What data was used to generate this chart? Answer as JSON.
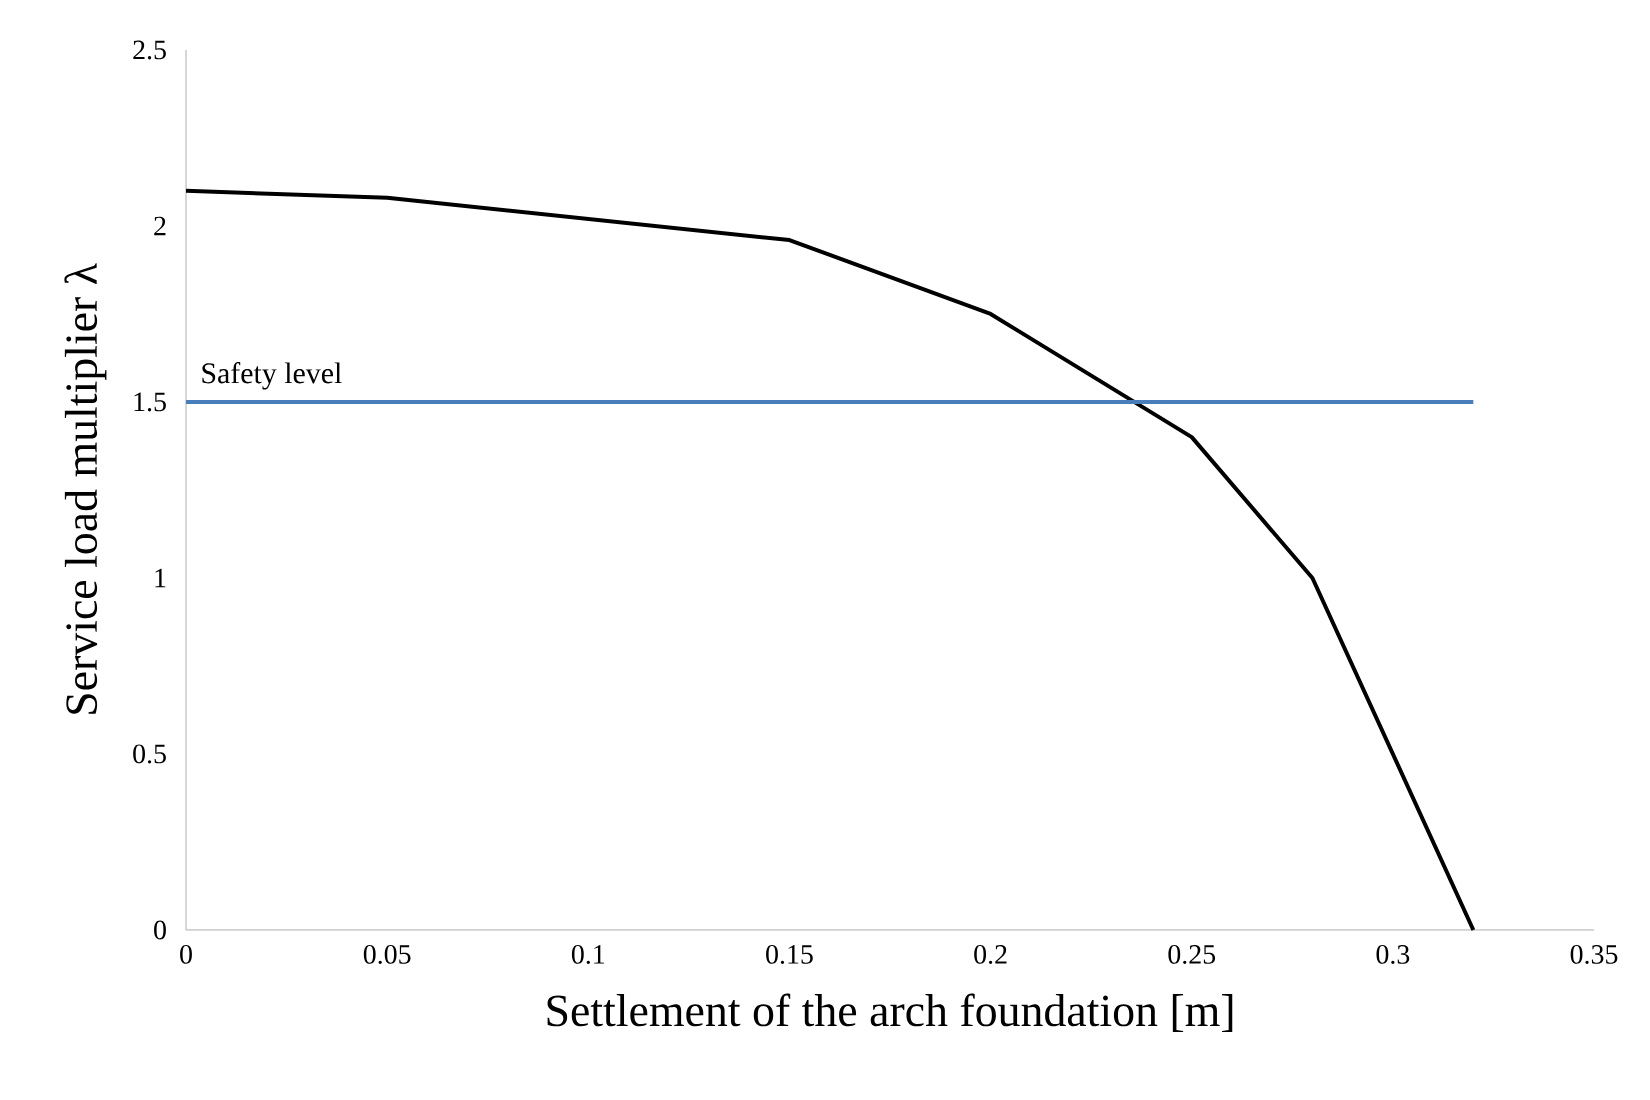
{
  "chart_data": {
    "type": "line",
    "xlabel": "Settlement of the arch foundation [m]",
    "ylabel": "Service load multiplier λ",
    "xlim": [
      0,
      0.35
    ],
    "ylim": [
      0,
      2.5
    ],
    "xticks": [
      0,
      0.05,
      0.1,
      0.15,
      0.2,
      0.25,
      0.3,
      0.35
    ],
    "yticks": [
      0,
      0.5,
      1,
      1.5,
      2,
      2.5
    ],
    "marker": "none",
    "line_style": "solid",
    "series": [
      {
        "color": "#000000",
        "x": [
          0,
          0.05,
          0.15,
          0.2,
          0.25,
          0.28,
          0.32
        ],
        "values": [
          2.1,
          2.08,
          1.96,
          1.75,
          1.4,
          1.0,
          0
        ]
      },
      {
        "color": "#4a7ebb",
        "x": [
          0,
          0.32
        ],
        "values": [
          1.5,
          1.5
        ]
      }
    ],
    "annotations": [
      {
        "text": "Safety level",
        "x": 0.0,
        "y": 1.5
      }
    ]
  }
}
